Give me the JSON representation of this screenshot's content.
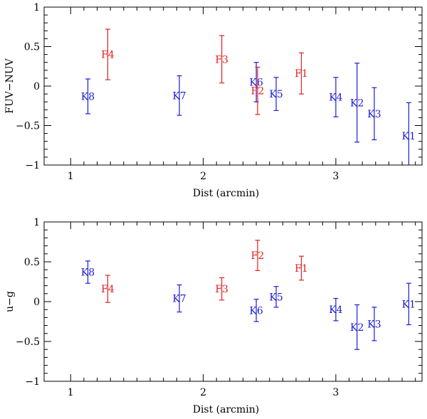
{
  "chart_data": [
    {
      "type": "scatter",
      "title": "",
      "xlabel": "Dist (arcmin)",
      "ylabel": "FUV−NUV",
      "xlim": [
        0.8,
        3.65
      ],
      "ylim": [
        -1,
        1
      ],
      "x_ticks": [
        "1",
        "2",
        "3"
      ],
      "y_ticks": [
        "−1",
        "−0.5",
        "0",
        "0.5",
        "1"
      ],
      "grid": false,
      "colors": {
        "K": "#1c1cd6",
        "F": "#e02020"
      },
      "points": [
        {
          "label": "K8",
          "group": "K",
          "x": 1.13,
          "y": -0.13,
          "err": 0.22
        },
        {
          "label": "F4",
          "group": "F",
          "x": 1.28,
          "y": 0.4,
          "err": 0.32
        },
        {
          "label": "K7",
          "group": "K",
          "x": 1.82,
          "y": -0.12,
          "err": 0.25
        },
        {
          "label": "F3",
          "group": "F",
          "x": 2.14,
          "y": 0.34,
          "err": 0.3
        },
        {
          "label": "K6",
          "group": "K",
          "x": 2.4,
          "y": 0.05,
          "err": 0.25
        },
        {
          "label": "F2",
          "group": "F",
          "x": 2.41,
          "y": -0.06,
          "err": 0.3
        },
        {
          "label": "K5",
          "group": "K",
          "x": 2.55,
          "y": -0.1,
          "err": 0.21
        },
        {
          "label": "F1",
          "group": "F",
          "x": 2.74,
          "y": 0.16,
          "err": 0.26
        },
        {
          "label": "K4",
          "group": "K",
          "x": 3.0,
          "y": -0.14,
          "err": 0.25
        },
        {
          "label": "K2",
          "group": "K",
          "x": 3.16,
          "y": -0.21,
          "err": 0.5
        },
        {
          "label": "K3",
          "group": "K",
          "x": 3.29,
          "y": -0.35,
          "err": 0.33
        },
        {
          "label": "K1",
          "group": "K",
          "x": 3.55,
          "y": -0.63,
          "err": 0.42
        }
      ]
    },
    {
      "type": "scatter",
      "title": "",
      "xlabel": "Dist (arcmin)",
      "ylabel": "u−g",
      "xlim": [
        0.8,
        3.65
      ],
      "ylim": [
        -1,
        1
      ],
      "x_ticks": [
        "1",
        "2",
        "3"
      ],
      "y_ticks": [
        "−1",
        "−0.5",
        "0",
        "0.5",
        "1"
      ],
      "grid": false,
      "colors": {
        "K": "#1c1cd6",
        "F": "#e02020"
      },
      "points": [
        {
          "label": "K8",
          "group": "K",
          "x": 1.13,
          "y": 0.37,
          "err": 0.14
        },
        {
          "label": "F4",
          "group": "F",
          "x": 1.28,
          "y": 0.16,
          "err": 0.17
        },
        {
          "label": "K7",
          "group": "K",
          "x": 1.82,
          "y": 0.04,
          "err": 0.17
        },
        {
          "label": "F3",
          "group": "F",
          "x": 2.14,
          "y": 0.16,
          "err": 0.14
        },
        {
          "label": "F2",
          "group": "F",
          "x": 2.41,
          "y": 0.58,
          "err": 0.19
        },
        {
          "label": "K6",
          "group": "K",
          "x": 2.4,
          "y": -0.11,
          "err": 0.14
        },
        {
          "label": "K5",
          "group": "K",
          "x": 2.55,
          "y": 0.06,
          "err": 0.13
        },
        {
          "label": "F1",
          "group": "F",
          "x": 2.74,
          "y": 0.42,
          "err": 0.15
        },
        {
          "label": "K4",
          "group": "K",
          "x": 3.0,
          "y": -0.1,
          "err": 0.14
        },
        {
          "label": "K2",
          "group": "K",
          "x": 3.16,
          "y": -0.32,
          "err": 0.28
        },
        {
          "label": "K3",
          "group": "K",
          "x": 3.29,
          "y": -0.28,
          "err": 0.21
        },
        {
          "label": "K1",
          "group": "K",
          "x": 3.55,
          "y": -0.03,
          "err": 0.26
        }
      ]
    }
  ]
}
